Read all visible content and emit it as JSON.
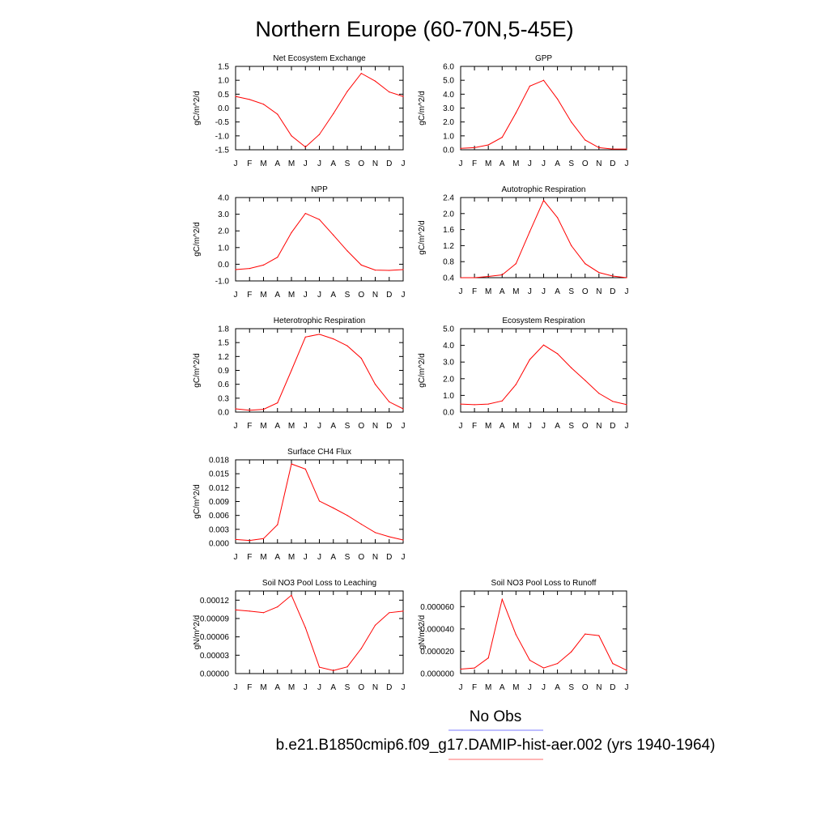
{
  "figure": {
    "title": "Northern Europe (60-70N,5-45E)",
    "legend": {
      "obs_label": "No Obs",
      "obs_color": "#7b7bff",
      "model_label": "b.e21.B1850cmip6.f09_g17.DAMIP-hist-aer.002 (yrs 1940-1964)",
      "model_color": "#ff6e6e"
    }
  },
  "chart_data": [
    {
      "type": "line",
      "title": "Net Ecosystem Exchange",
      "ylabel": "gC/m^2/d",
      "x": [
        "J",
        "F",
        "M",
        "A",
        "M",
        "J",
        "J",
        "A",
        "S",
        "O",
        "N",
        "D",
        "J"
      ],
      "ylim": [
        -1.5,
        1.5
      ],
      "yticks": [
        "1.5",
        "1.0",
        "0.5",
        "0.0",
        "-0.5",
        "-1.0",
        "-1.5"
      ],
      "series": [
        {
          "values": [
            0.42,
            0.31,
            0.14,
            -0.22,
            -1.0,
            -1.4,
            -0.95,
            -0.2,
            0.6,
            1.25,
            0.97,
            0.58,
            0.42
          ],
          "color": "#ff0000"
        }
      ]
    },
    {
      "type": "line",
      "title": "GPP",
      "ylabel": "gC/m^2/d",
      "x": [
        "J",
        "F",
        "M",
        "A",
        "M",
        "J",
        "J",
        "A",
        "S",
        "O",
        "N",
        "D",
        "J"
      ],
      "ylim": [
        0,
        6
      ],
      "yticks": [
        "6.0",
        "5.0",
        "4.0",
        "3.0",
        "2.0",
        "1.0",
        "0.0"
      ],
      "series": [
        {
          "values": [
            0.1,
            0.15,
            0.35,
            0.9,
            2.65,
            4.58,
            5.0,
            3.65,
            2.0,
            0.7,
            0.15,
            0.05,
            0.05
          ],
          "color": "#ff0000"
        }
      ]
    },
    {
      "type": "line",
      "title": "NPP",
      "ylabel": "gC/m^2/d",
      "x": [
        "J",
        "F",
        "M",
        "A",
        "M",
        "J",
        "J",
        "A",
        "S",
        "O",
        "N",
        "D",
        "J"
      ],
      "ylim": [
        -1,
        4
      ],
      "yticks": [
        "4.0",
        "3.0",
        "2.0",
        "1.0",
        "0.0",
        "-1.0"
      ],
      "series": [
        {
          "values": [
            -0.32,
            -0.25,
            -0.05,
            0.42,
            1.9,
            3.05,
            2.68,
            1.75,
            0.8,
            -0.05,
            -0.35,
            -0.37,
            -0.32
          ],
          "color": "#ff0000"
        }
      ]
    },
    {
      "type": "line",
      "title": "Autotrophic Respiration",
      "ylabel": "gC/m^2/d",
      "x": [
        "J",
        "F",
        "M",
        "A",
        "M",
        "J",
        "J",
        "A",
        "S",
        "O",
        "N",
        "D",
        "J"
      ],
      "ylim": [
        0.4,
        2.4
      ],
      "yticks": [
        "2.4",
        "2.0",
        "1.6",
        "1.2",
        "0.8",
        "0.4"
      ],
      "series": [
        {
          "values": [
            0.4,
            0.4,
            0.43,
            0.47,
            0.75,
            1.55,
            2.33,
            1.9,
            1.2,
            0.75,
            0.53,
            0.44,
            0.4
          ],
          "color": "#ff0000"
        }
      ]
    },
    {
      "type": "line",
      "title": "Heterotrophic Respiration",
      "ylabel": "gC/m^2/d",
      "x": [
        "J",
        "F",
        "M",
        "A",
        "M",
        "J",
        "J",
        "A",
        "S",
        "O",
        "N",
        "D",
        "J"
      ],
      "ylim": [
        0,
        1.8
      ],
      "yticks": [
        "1.8",
        "1.5",
        "1.2",
        "0.9",
        "0.6",
        "0.3",
        "0.0"
      ],
      "series": [
        {
          "values": [
            0.07,
            0.04,
            0.06,
            0.2,
            0.9,
            1.62,
            1.68,
            1.58,
            1.43,
            1.16,
            0.6,
            0.22,
            0.07
          ],
          "color": "#ff0000"
        }
      ]
    },
    {
      "type": "line",
      "title": "Ecosystem Respiration",
      "ylabel": "gC/m^2/d",
      "x": [
        "J",
        "F",
        "M",
        "A",
        "M",
        "J",
        "J",
        "A",
        "S",
        "O",
        "N",
        "D",
        "J"
      ],
      "ylim": [
        0,
        5
      ],
      "yticks": [
        "5.0",
        "4.0",
        "3.0",
        "2.0",
        "1.0",
        "0.0"
      ],
      "series": [
        {
          "values": [
            0.48,
            0.44,
            0.48,
            0.67,
            1.65,
            3.15,
            4.02,
            3.5,
            2.65,
            1.9,
            1.12,
            0.64,
            0.45
          ],
          "color": "#ff0000"
        }
      ]
    },
    {
      "type": "line",
      "title": "Surface CH4 Flux",
      "ylabel": "gC/m^2/d",
      "x": [
        "J",
        "F",
        "M",
        "A",
        "M",
        "J",
        "J",
        "A",
        "S",
        "O",
        "N",
        "D",
        "J"
      ],
      "ylim": [
        0,
        0.018
      ],
      "yticks": [
        "0.018",
        "0.015",
        "0.012",
        "0.009",
        "0.006",
        "0.003",
        "0.000"
      ],
      "series": [
        {
          "values": [
            0.0008,
            0.0006,
            0.001,
            0.004,
            0.0171,
            0.016,
            0.0091,
            0.0076,
            0.006,
            0.0041,
            0.0023,
            0.0014,
            0.0007
          ],
          "color": "#ff0000"
        }
      ]
    },
    {
      "type": "line",
      "title": "Soil NO3 Pool Loss to Leaching",
      "ylabel": "gN/m^2/d",
      "x": [
        "J",
        "F",
        "M",
        "A",
        "M",
        "J",
        "J",
        "A",
        "S",
        "O",
        "N",
        "D",
        "J"
      ],
      "ylim": [
        0,
        0.000135
      ],
      "yticks": [
        "0.00012",
        "0.00009",
        "0.00006",
        "0.00003",
        "0.00000"
      ],
      "series": [
        {
          "values": [
            0.000104,
            0.000102,
            9.95e-05,
            0.000109,
            0.000128,
            7.5e-05,
            1.05e-05,
            5e-06,
            1.1e-05,
            4.1e-05,
            7.9e-05,
            9.95e-05,
            0.000102
          ],
          "color": "#ff0000"
        }
      ]
    },
    {
      "type": "line",
      "title": "Soil NO3 Pool Loss to Runoff",
      "ylabel": "gN/m^2/d",
      "x": [
        "J",
        "F",
        "M",
        "A",
        "M",
        "J",
        "J",
        "A",
        "S",
        "O",
        "N",
        "D",
        "J"
      ],
      "ylim": [
        0,
        7.4e-05
      ],
      "yticks": [
        "0.000060",
        "0.000040",
        "0.000020",
        "0.000000"
      ],
      "series": [
        {
          "values": [
            4e-06,
            5e-06,
            1.4e-05,
            6.65e-05,
            3.5e-05,
            1.2e-05,
            5e-06,
            9e-06,
            1.95e-05,
            3.55e-05,
            3.4e-05,
            9e-06,
            3e-06
          ],
          "color": "#ff0000"
        }
      ]
    }
  ]
}
